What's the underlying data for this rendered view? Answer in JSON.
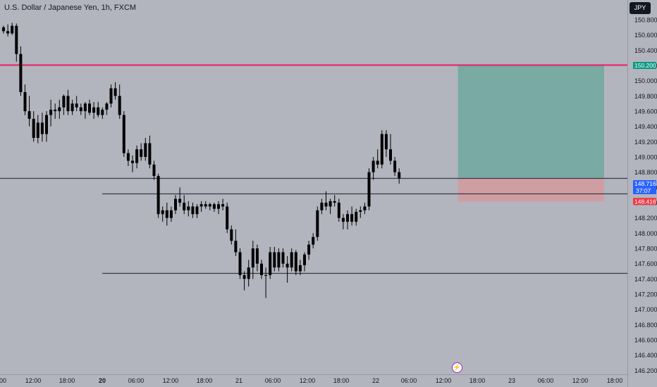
{
  "header": {
    "title": "U.S. Dollar / Japanese Yen, 1h, FXCM",
    "currency": "JPY"
  },
  "icons": {
    "event_marker": "lightning-bolt-icon"
  },
  "colors": {
    "background": "#b2b5be",
    "candle": "#000000",
    "resistance_line": "#e91e63",
    "level_line": "#363a45",
    "profit_zone": "#6fa8a0",
    "loss_zone": "#d49a9e",
    "target_tag": "#089981",
    "stop_tag": "#f23645",
    "last_price_tag": "#2962ff"
  },
  "chart_data": {
    "type": "candlestick",
    "symbol": "U.S. Dollar / Japanese Yen",
    "interval": "1h",
    "source": "FXCM",
    "x_ticks": [
      "00",
      "12:00",
      "18:00",
      "20",
      "06:00",
      "12:00",
      "18:00",
      "21",
      "06:00",
      "12:00",
      "18:00",
      "22",
      "06:00",
      "12:00",
      "18:00",
      "23",
      "06:00",
      "12:00",
      "18:00"
    ],
    "y_ticks": [
      "150.800",
      "150.600",
      "150.400",
      "150.200",
      "150.000",
      "149.800",
      "149.600",
      "149.400",
      "149.200",
      "149.000",
      "148.800",
      "148.600",
      "148.400",
      "148.200",
      "148.000",
      "147.800",
      "147.600",
      "147.400",
      "147.200",
      "147.000",
      "146.800",
      "146.600",
      "146.400",
      "146.200"
    ],
    "ylim": [
      146.17,
      150.97
    ],
    "horizontal_lines": [
      {
        "name": "resistance",
        "value": 150.21,
        "color": "#e91e63"
      },
      {
        "name": "level-1",
        "value": 148.725,
        "color": "#363a45"
      },
      {
        "name": "level-2",
        "value": 148.52,
        "color": "#363a45"
      },
      {
        "name": "level-3",
        "value": 147.48,
        "color": "#363a45"
      }
    ],
    "position": {
      "entry": 148.725,
      "target": 150.2,
      "stop": 148.416,
      "start_bar": 106,
      "end_bar": 140
    },
    "price_tags": {
      "target": "150.200",
      "entry": "148.725",
      "last": "148.716",
      "countdown": "37:07",
      "stop": "148.416"
    },
    "candles": [
      [
        150.7,
        150.72,
        150.62,
        150.65
      ],
      [
        150.65,
        150.74,
        150.58,
        150.62
      ],
      [
        150.62,
        150.76,
        150.6,
        150.72
      ],
      [
        150.72,
        150.75,
        150.25,
        150.35
      ],
      [
        150.35,
        150.45,
        149.8,
        149.85
      ],
      [
        149.85,
        149.95,
        149.55,
        149.6
      ],
      [
        149.6,
        149.8,
        149.4,
        149.5
      ],
      [
        149.5,
        149.6,
        149.2,
        149.25
      ],
      [
        149.25,
        149.55,
        149.18,
        149.45
      ],
      [
        149.45,
        149.58,
        149.2,
        149.3
      ],
      [
        149.3,
        149.6,
        149.2,
        149.55
      ],
      [
        149.55,
        149.75,
        149.4,
        149.62
      ],
      [
        149.62,
        149.7,
        149.5,
        149.6
      ],
      [
        149.6,
        149.75,
        149.5,
        149.65
      ],
      [
        149.65,
        149.82,
        149.55,
        149.8
      ],
      [
        149.8,
        149.88,
        149.55,
        149.6
      ],
      [
        149.6,
        149.75,
        149.55,
        149.7
      ],
      [
        149.7,
        149.8,
        149.6,
        149.65
      ],
      [
        149.65,
        149.7,
        149.55,
        149.6
      ],
      [
        149.6,
        149.72,
        149.5,
        149.7
      ],
      [
        149.7,
        149.75,
        149.55,
        149.58
      ],
      [
        149.58,
        149.72,
        149.5,
        149.65
      ],
      [
        149.65,
        149.72,
        149.52,
        149.55
      ],
      [
        149.55,
        149.65,
        149.5,
        149.62
      ],
      [
        149.62,
        149.72,
        149.55,
        149.7
      ],
      [
        149.7,
        149.95,
        149.65,
        149.9
      ],
      [
        149.9,
        149.98,
        149.75,
        149.8
      ],
      [
        149.8,
        149.95,
        149.5,
        149.55
      ],
      [
        149.55,
        149.6,
        149.0,
        149.05
      ],
      [
        149.05,
        149.1,
        148.88,
        148.95
      ],
      [
        148.95,
        149.02,
        148.8,
        148.92
      ],
      [
        148.92,
        149.15,
        148.85,
        149.1
      ],
      [
        149.1,
        149.18,
        148.95,
        149.0
      ],
      [
        149.0,
        149.25,
        148.95,
        149.18
      ],
      [
        149.18,
        149.28,
        148.85,
        148.9
      ],
      [
        148.9,
        148.95,
        148.7,
        148.75
      ],
      [
        148.75,
        148.78,
        148.2,
        148.25
      ],
      [
        148.25,
        148.35,
        148.15,
        148.3
      ],
      [
        148.3,
        148.4,
        148.1,
        148.2
      ],
      [
        148.2,
        148.35,
        148.15,
        148.3
      ],
      [
        148.3,
        148.5,
        148.25,
        148.45
      ],
      [
        148.45,
        148.6,
        148.35,
        148.4
      ],
      [
        148.4,
        148.5,
        148.25,
        148.3
      ],
      [
        148.3,
        148.42,
        148.22,
        148.35
      ],
      [
        148.35,
        148.4,
        148.2,
        148.25
      ],
      [
        148.25,
        148.38,
        148.2,
        148.35
      ],
      [
        148.35,
        148.42,
        148.28,
        148.38
      ],
      [
        148.38,
        148.42,
        148.32,
        148.35
      ],
      [
        148.35,
        148.4,
        148.3,
        148.38
      ],
      [
        148.38,
        148.4,
        148.28,
        148.32
      ],
      [
        148.32,
        148.42,
        148.25,
        148.38
      ],
      [
        148.38,
        148.45,
        148.3,
        148.35
      ],
      [
        148.35,
        148.4,
        148.0,
        148.05
      ],
      [
        148.05,
        148.1,
        147.85,
        147.9
      ],
      [
        147.9,
        148.05,
        147.7,
        147.75
      ],
      [
        147.75,
        147.8,
        147.4,
        147.45
      ],
      [
        147.45,
        147.5,
        147.25,
        147.4
      ],
      [
        147.4,
        147.65,
        147.3,
        147.55
      ],
      [
        147.55,
        147.9,
        147.4,
        147.8
      ],
      [
        147.8,
        147.85,
        147.5,
        147.6
      ],
      [
        147.6,
        147.65,
        147.4,
        147.45
      ],
      [
        147.45,
        147.55,
        147.15,
        147.45
      ],
      [
        147.45,
        147.82,
        147.4,
        147.75
      ],
      [
        147.75,
        147.82,
        147.5,
        147.55
      ],
      [
        147.55,
        147.8,
        147.5,
        147.75
      ],
      [
        147.75,
        147.8,
        147.55,
        147.6
      ],
      [
        147.6,
        147.7,
        147.35,
        147.55
      ],
      [
        147.55,
        147.8,
        147.5,
        147.75
      ],
      [
        147.75,
        147.78,
        147.45,
        147.5
      ],
      [
        147.5,
        147.65,
        147.45,
        147.58
      ],
      [
        147.58,
        147.75,
        147.5,
        147.72
      ],
      [
        147.72,
        147.9,
        147.65,
        147.85
      ],
      [
        147.85,
        148.0,
        147.8,
        147.95
      ],
      [
        147.95,
        148.35,
        147.9,
        148.3
      ],
      [
        148.3,
        148.45,
        148.25,
        148.4
      ],
      [
        148.4,
        148.55,
        148.3,
        148.35
      ],
      [
        148.35,
        148.45,
        148.25,
        148.42
      ],
      [
        148.42,
        148.5,
        148.35,
        148.4
      ],
      [
        148.4,
        148.45,
        148.15,
        148.2
      ],
      [
        148.2,
        148.25,
        148.05,
        148.15
      ],
      [
        148.15,
        148.3,
        148.05,
        148.25
      ],
      [
        148.25,
        148.35,
        148.1,
        148.15
      ],
      [
        148.15,
        148.32,
        148.1,
        148.28
      ],
      [
        148.28,
        148.35,
        148.2,
        148.3
      ],
      [
        148.3,
        148.4,
        148.25,
        148.35
      ],
      [
        148.35,
        148.85,
        148.3,
        148.8
      ],
      [
        148.8,
        149.0,
        148.7,
        148.95
      ],
      [
        148.95,
        149.1,
        148.85,
        148.9
      ],
      [
        148.9,
        149.35,
        148.85,
        149.3
      ],
      [
        149.3,
        149.35,
        149.0,
        149.1
      ],
      [
        149.1,
        149.3,
        148.9,
        148.95
      ],
      [
        148.95,
        149.0,
        148.75,
        148.8
      ],
      [
        148.8,
        148.85,
        148.65,
        148.72
      ]
    ]
  }
}
